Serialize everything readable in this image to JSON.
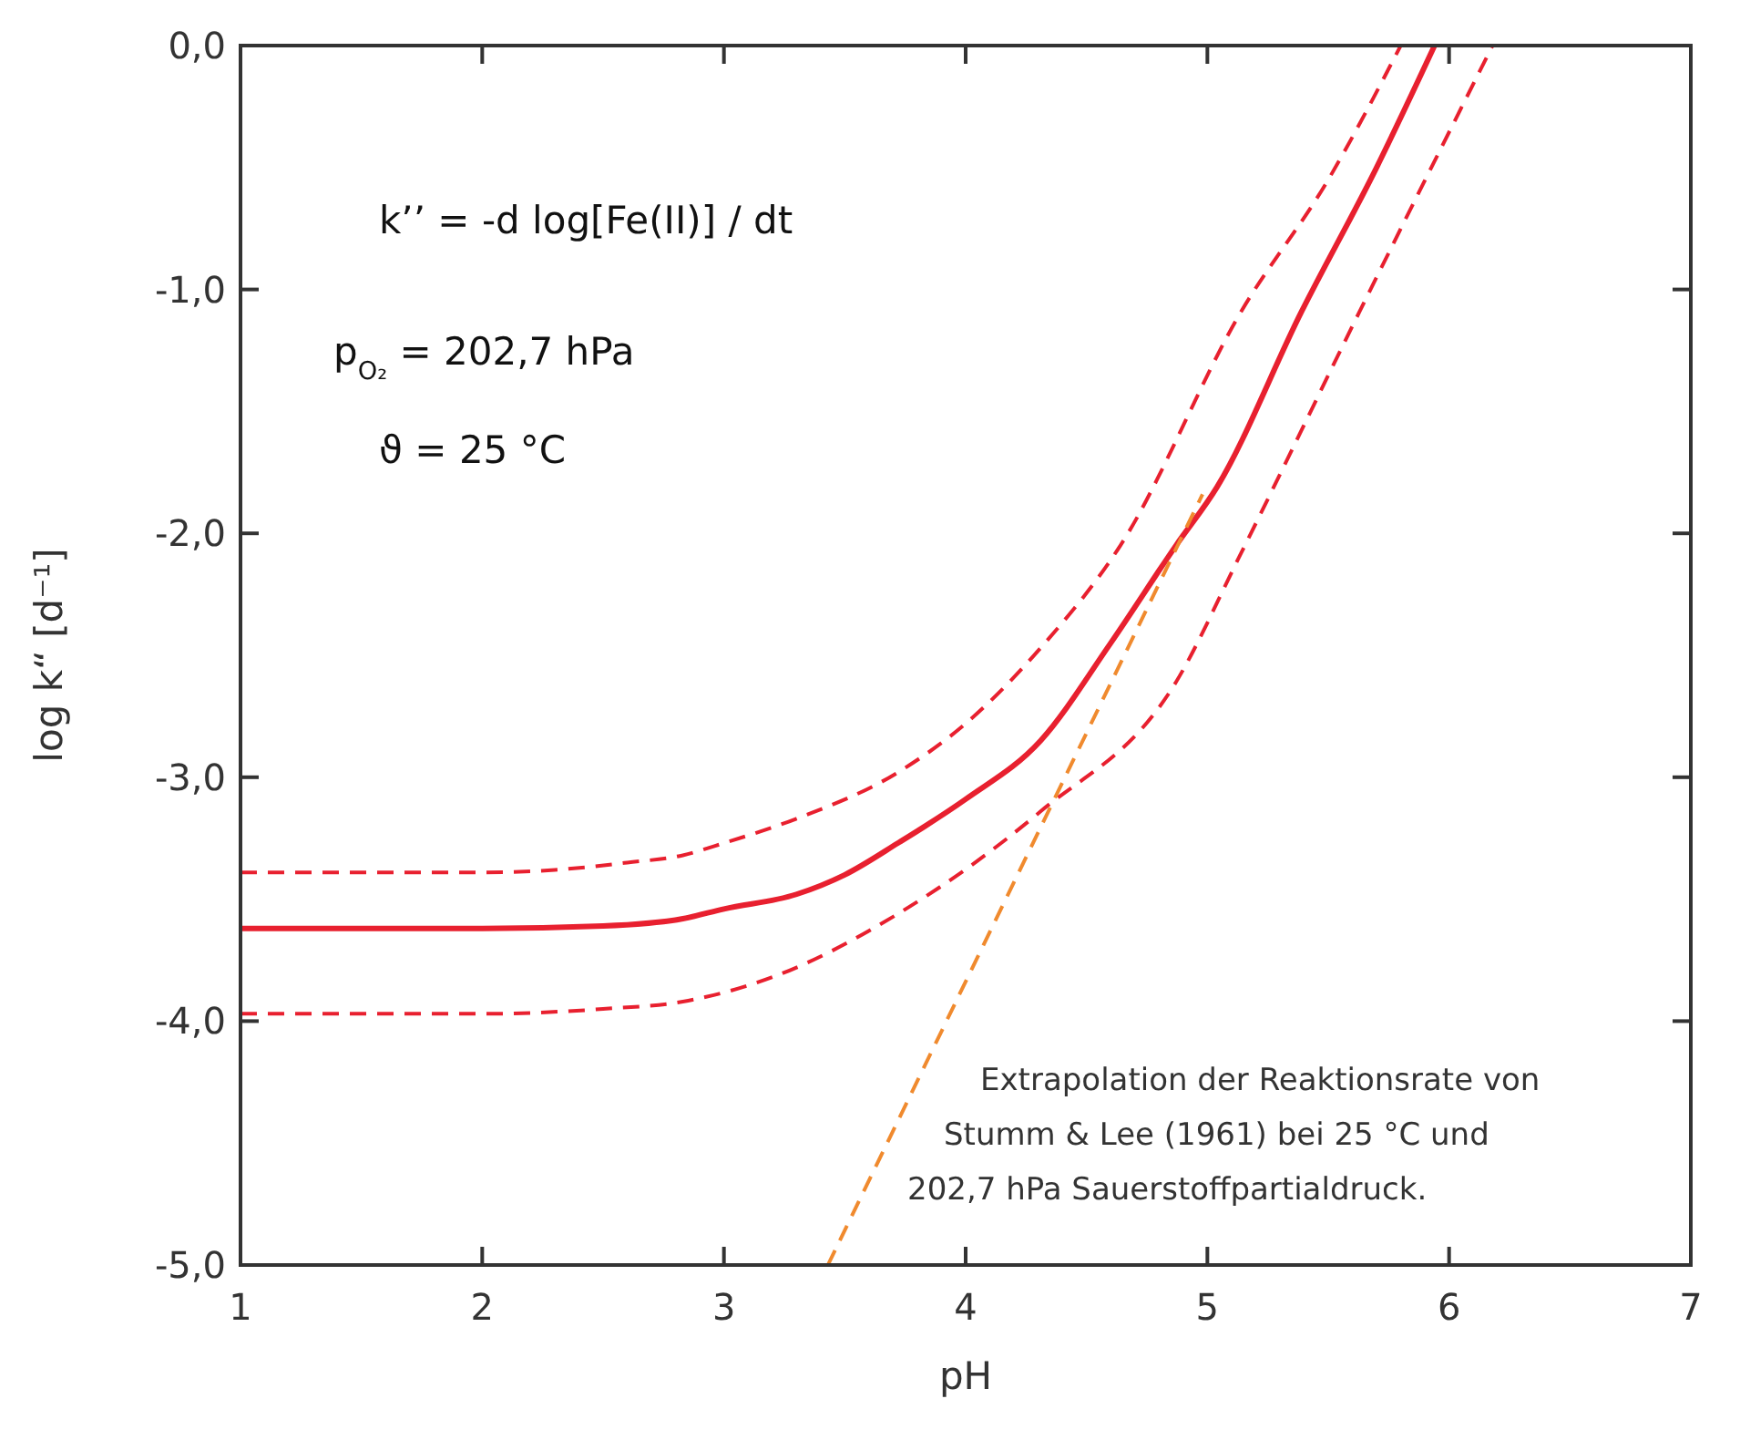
{
  "chart_data": {
    "type": "line",
    "xlabel": "pH",
    "ylabel": "log k“ [d⁻¹]",
    "xlim": [
      1,
      7
    ],
    "xticks": [
      1,
      2,
      3,
      4,
      5,
      6,
      7
    ],
    "ylim": [
      -5,
      0
    ],
    "yticks": [
      {
        "value": -5,
        "label": "-5,0"
      },
      {
        "value": -4,
        "label": "-4,0"
      },
      {
        "value": -3,
        "label": "-3,0"
      },
      {
        "value": -2,
        "label": "-2,0"
      },
      {
        "value": -1,
        "label": "-1,0"
      },
      {
        "value": 0,
        "label": "0,0"
      }
    ],
    "grid": false,
    "marker": "none",
    "series": [
      {
        "color": "#e8202f",
        "line_style": "dashed",
        "x": [
          1,
          2,
          2.3,
          2.6,
          2.83,
          3,
          3.3,
          3.72,
          4,
          4.31,
          4.64,
          5.14,
          5.5,
          5.8
        ],
        "values": [
          -3.39,
          -3.39,
          -3.38,
          -3.35,
          -3.32,
          -3.27,
          -3.17,
          -2.98,
          -2.78,
          -2.47,
          -2.05,
          -1.09,
          -0.55,
          0
        ]
      },
      {
        "color": "#e8202f",
        "line_style": "solid",
        "x": [
          1,
          2,
          2.5,
          2.83,
          3,
          3.3,
          3.5,
          3.72,
          4,
          4.31,
          4.6,
          4.87,
          5.04,
          5.39,
          5.7,
          5.94
        ],
        "values": [
          -3.62,
          -3.62,
          -3.61,
          -3.58,
          -3.54,
          -3.48,
          -3.4,
          -3.27,
          -3.09,
          -2.85,
          -2.45,
          -2.05,
          -1.81,
          -1.09,
          -0.5,
          0
        ]
      },
      {
        "color": "#e8202f",
        "line_style": "dashed",
        "x": [
          1,
          2,
          2.5,
          2.83,
          3.2,
          3.72,
          4.31,
          4.87,
          5.14,
          5.63,
          6.18
        ],
        "values": [
          -3.97,
          -3.97,
          -3.95,
          -3.92,
          -3.82,
          -3.56,
          -3.14,
          -2.61,
          -2.08,
          -1.09,
          0
        ]
      },
      {
        "color": "#f08a2e",
        "line_style": "dashed",
        "x": [
          3.43,
          4.98
        ],
        "values": [
          -5,
          -1.84
        ]
      }
    ],
    "annotations": [
      "k’’ = -d log[Fe(II)] / dt",
      "p$_{O₂}$ = 202,7 hPa",
      "ϑ = 25 °C",
      "Extrapolation der Reaktionsrate von Stumm & Lee (1961) bei 25 °C und 202,7 hPa Sauerstoffpartialdruck."
    ]
  }
}
